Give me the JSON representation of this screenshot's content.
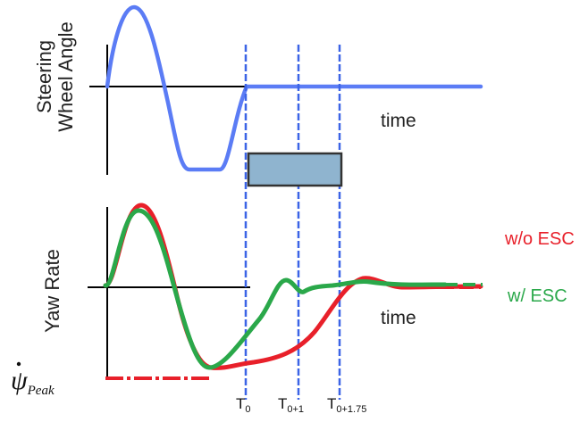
{
  "labels": {
    "steering_line1": "Steering",
    "steering_line2": "Wheel Angle",
    "yaw_rate": "Yaw Rate",
    "time_top": "time",
    "time_bottom": "time",
    "legend_wo_esc": "w/o ESC",
    "legend_w_esc": "w/ ESC",
    "psi_symbol": "ψ",
    "psi_subscript": "Peak"
  },
  "time_markers": [
    {
      "base": "T",
      "sub": "0"
    },
    {
      "base": "T",
      "sub": "0+1"
    },
    {
      "base": "T",
      "sub": "0+1.75"
    }
  ],
  "colors": {
    "steering_trace": "#5b7cf5",
    "marker_lines": "#3c64e6",
    "wo_esc": "#e8202a",
    "w_esc": "#2aa84a",
    "box_fill": "#8fb4cf",
    "box_stroke": "#333333"
  }
}
